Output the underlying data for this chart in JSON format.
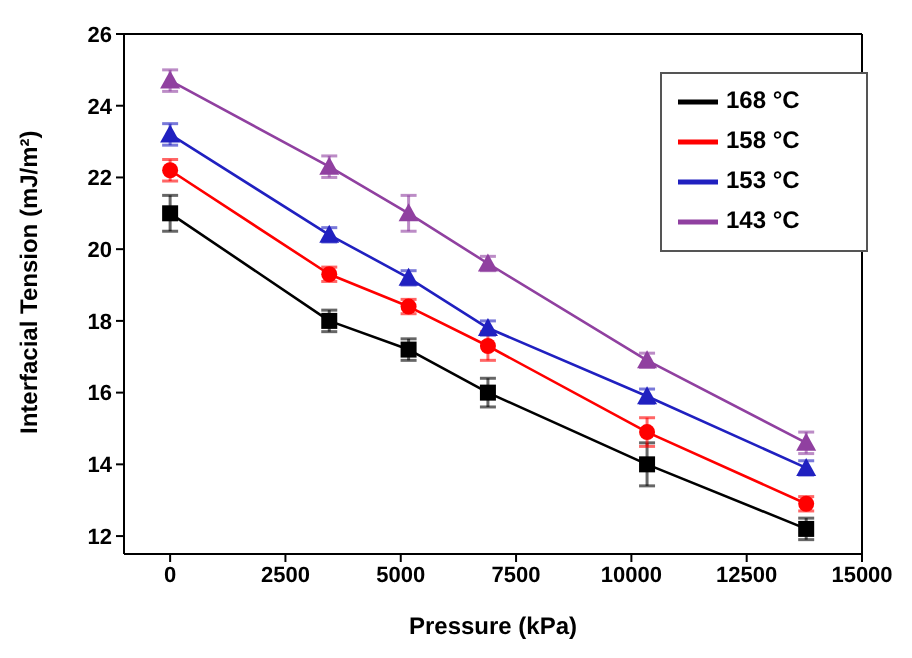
{
  "chart_data": {
    "type": "line",
    "xlabel": "Pressure (kPa)",
    "ylabel": "Interfacial Tension (mJ/m²)",
    "x": [
      0,
      3450,
      5170,
      6890,
      10340,
      13790
    ],
    "series": [
      {
        "name": "168 °C",
        "color": "#000000",
        "marker": "square",
        "values": [
          21.0,
          18.0,
          17.2,
          16.0,
          14.0,
          12.2
        ],
        "errors": [
          0.5,
          0.3,
          0.3,
          0.4,
          0.6,
          0.3
        ]
      },
      {
        "name": "158 °C",
        "color": "#ff0000",
        "marker": "circle",
        "values": [
          22.2,
          19.3,
          18.4,
          17.3,
          14.9,
          12.9
        ],
        "errors": [
          0.3,
          0.2,
          0.2,
          0.4,
          0.4,
          0.2
        ]
      },
      {
        "name": "153 °C",
        "color": "#2020c0",
        "marker": "triangle",
        "values": [
          23.2,
          20.4,
          19.2,
          17.8,
          15.9,
          13.9
        ],
        "errors": [
          0.3,
          0.2,
          0.2,
          0.2,
          0.2,
          0.2
        ]
      },
      {
        "name": "143 °C",
        "color": "#9040a0",
        "marker": "triangle",
        "values": [
          24.7,
          22.3,
          21.0,
          19.6,
          16.9,
          14.6
        ],
        "errors": [
          0.3,
          0.3,
          0.5,
          0.2,
          0.2,
          0.3
        ]
      }
    ],
    "xlim": [
      -1000,
      15000
    ],
    "xticks": [
      0,
      2500,
      5000,
      7500,
      10000,
      12500,
      15000
    ],
    "ylim": [
      11.5,
      26
    ],
    "yticks": [
      12,
      14,
      16,
      18,
      20,
      22,
      24,
      26
    ],
    "legend": "top right",
    "grid": false
  }
}
